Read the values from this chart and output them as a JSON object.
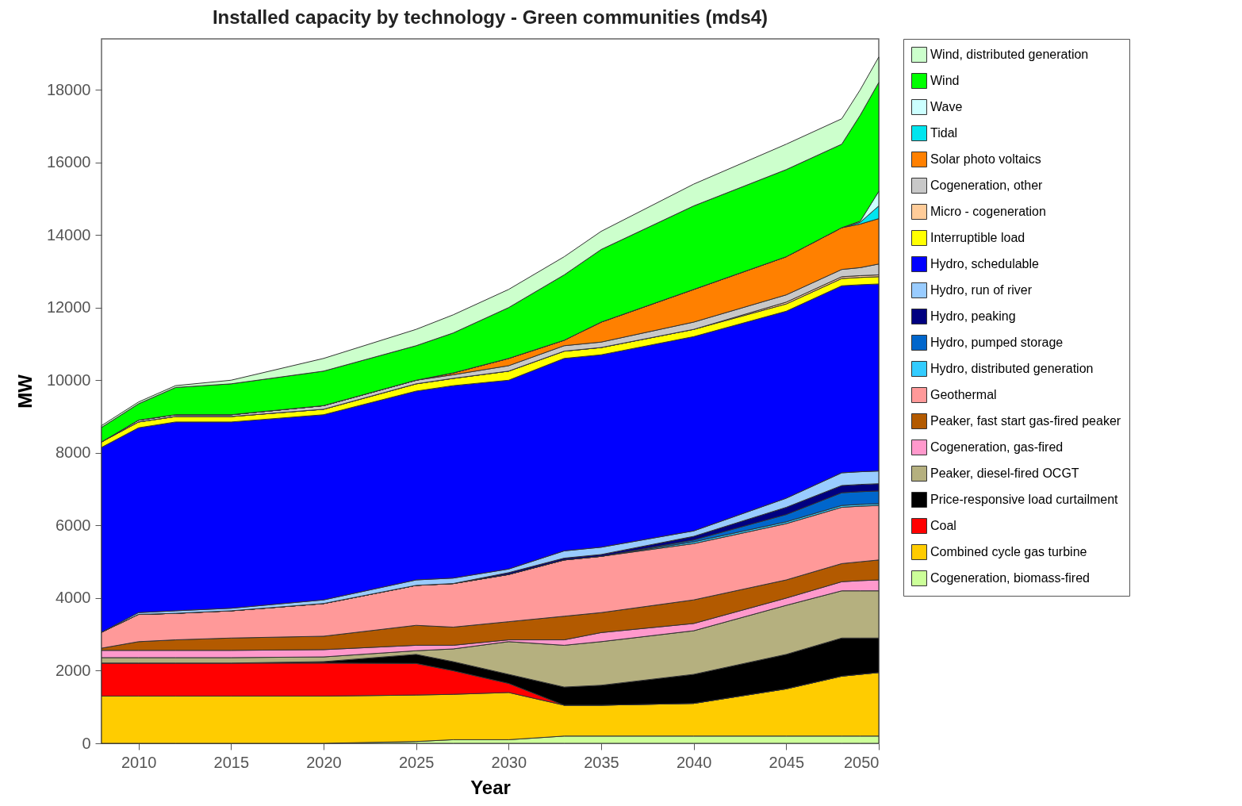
{
  "chart_data": {
    "type": "area",
    "title": "Installed capacity by technology - Green communities (mds4)",
    "xlabel": "Year",
    "ylabel": "MW",
    "stacked": true,
    "legend": "right",
    "grid": false,
    "x": [
      2008,
      2010,
      2012,
      2015,
      2020,
      2025,
      2027,
      2030,
      2033,
      2035,
      2040,
      2045,
      2048,
      2049,
      2050
    ],
    "xlim": [
      2008,
      2050
    ],
    "xticks": [
      2010,
      2015,
      2020,
      2025,
      2030,
      2035,
      2040,
      2045,
      2050
    ],
    "ylim": [
      0,
      19400
    ],
    "yticks": [
      0,
      2000,
      4000,
      6000,
      8000,
      10000,
      12000,
      14000,
      16000,
      18000
    ],
    "series": [
      {
        "name": "Cogeneration, biomass-fired",
        "color": "#ccff99",
        "values": [
          0,
          0,
          0,
          0,
          0,
          50,
          100,
          100,
          200,
          200,
          200,
          200,
          200,
          200,
          200
        ]
      },
      {
        "name": "Combined cycle gas turbine",
        "color": "#ffcc00",
        "values": [
          1300,
          1300,
          1300,
          1300,
          1300,
          1280,
          1250,
          1300,
          850,
          850,
          900,
          1300,
          1650,
          1700,
          1750
        ]
      },
      {
        "name": "Coal",
        "color": "#ff0000",
        "values": [
          910,
          910,
          910,
          910,
          910,
          870,
          650,
          250,
          0,
          0,
          0,
          0,
          0,
          0,
          0
        ]
      },
      {
        "name": "Price-responsive load curtailment",
        "color": "#000000",
        "values": [
          0,
          0,
          0,
          0,
          40,
          250,
          250,
          250,
          500,
          550,
          800,
          950,
          1050,
          1000,
          950
        ]
      },
      {
        "name": "Peaker, diesel-fired OCGT",
        "color": "#b5b07f",
        "values": [
          150,
          150,
          150,
          150,
          130,
          100,
          350,
          900,
          1150,
          1200,
          1200,
          1350,
          1300,
          1300,
          1300
        ]
      },
      {
        "name": "Cogeneration, gas-fired",
        "color": "#ff99cc",
        "values": [
          200,
          200,
          200,
          200,
          200,
          150,
          100,
          50,
          150,
          250,
          200,
          200,
          250,
          280,
          300
        ]
      },
      {
        "name": "Peaker, fast start gas-fired peaker",
        "color": "#b35a00",
        "values": [
          60,
          240,
          290,
          340,
          370,
          550,
          500,
          500,
          650,
          550,
          650,
          500,
          500,
          520,
          550
        ]
      },
      {
        "name": "Geothermal",
        "color": "#ff9999",
        "values": [
          440,
          750,
          730,
          750,
          900,
          1100,
          1200,
          1300,
          1550,
          1550,
          1550,
          1550,
          1550,
          1530,
          1500
        ]
      },
      {
        "name": "Hydro, distributed generation",
        "color": "#33ccff",
        "values": [
          0,
          0,
          0,
          0,
          0,
          0,
          0,
          0,
          0,
          0,
          50,
          50,
          50,
          50,
          50
        ]
      },
      {
        "name": "Hydro, pumped storage",
        "color": "#0066cc",
        "values": [
          0,
          0,
          0,
          0,
          0,
          0,
          0,
          0,
          0,
          0,
          50,
          200,
          350,
          350,
          350
        ]
      },
      {
        "name": "Hydro, peaking",
        "color": "#000080",
        "values": [
          0,
          0,
          0,
          0,
          0,
          0,
          0,
          50,
          50,
          50,
          100,
          200,
          200,
          200,
          200
        ]
      },
      {
        "name": "Hydro, run of river",
        "color": "#99ccff",
        "values": [
          0,
          50,
          70,
          70,
          100,
          150,
          150,
          100,
          200,
          200,
          150,
          250,
          350,
          350,
          350
        ]
      },
      {
        "name": "Hydro, schedulable",
        "color": "#0000ff",
        "values": [
          5090,
          5090,
          5200,
          5130,
          5100,
          5200,
          5300,
          5200,
          5300,
          5300,
          5350,
          5150,
          5150,
          5150,
          5150
        ]
      },
      {
        "name": "Interruptible load",
        "color": "#ffff00",
        "values": [
          150,
          160,
          150,
          150,
          150,
          200,
          200,
          250,
          200,
          200,
          200,
          200,
          200,
          200,
          200
        ]
      },
      {
        "name": "Micro - cogeneration",
        "color": "#ffcc99",
        "values": [
          0,
          0,
          0,
          0,
          0,
          0,
          0,
          0,
          0,
          0,
          0,
          50,
          50,
          50,
          50
        ]
      },
      {
        "name": "Cogeneration, other",
        "color": "#c8c8c8",
        "values": [
          0,
          50,
          50,
          50,
          100,
          100,
          100,
          150,
          150,
          150,
          200,
          200,
          200,
          220,
          300
        ]
      },
      {
        "name": "Solar photo voltaics",
        "color": "#ff8000",
        "values": [
          0,
          0,
          0,
          0,
          0,
          0,
          50,
          200,
          150,
          550,
          900,
          1050,
          1150,
          1200,
          1250
        ]
      },
      {
        "name": "Tidal",
        "color": "#00e5ee",
        "values": [
          0,
          0,
          0,
          0,
          0,
          0,
          0,
          0,
          0,
          0,
          0,
          0,
          0,
          50,
          350
        ]
      },
      {
        "name": "Wave",
        "color": "#ccffff",
        "values": [
          0,
          0,
          0,
          0,
          0,
          0,
          0,
          0,
          0,
          0,
          0,
          0,
          0,
          30,
          400
        ]
      },
      {
        "name": "Wind",
        "color": "#00ff00",
        "values": [
          400,
          450,
          750,
          850,
          950,
          950,
          1100,
          1400,
          1800,
          2000,
          2300,
          2400,
          2300,
          2920,
          3000
        ]
      },
      {
        "name": "Wind, distributed generation",
        "color": "#ccffcc",
        "values": [
          50,
          50,
          50,
          100,
          350,
          450,
          500,
          500,
          500,
          500,
          600,
          700,
          700,
          700,
          700
        ]
      }
    ]
  }
}
